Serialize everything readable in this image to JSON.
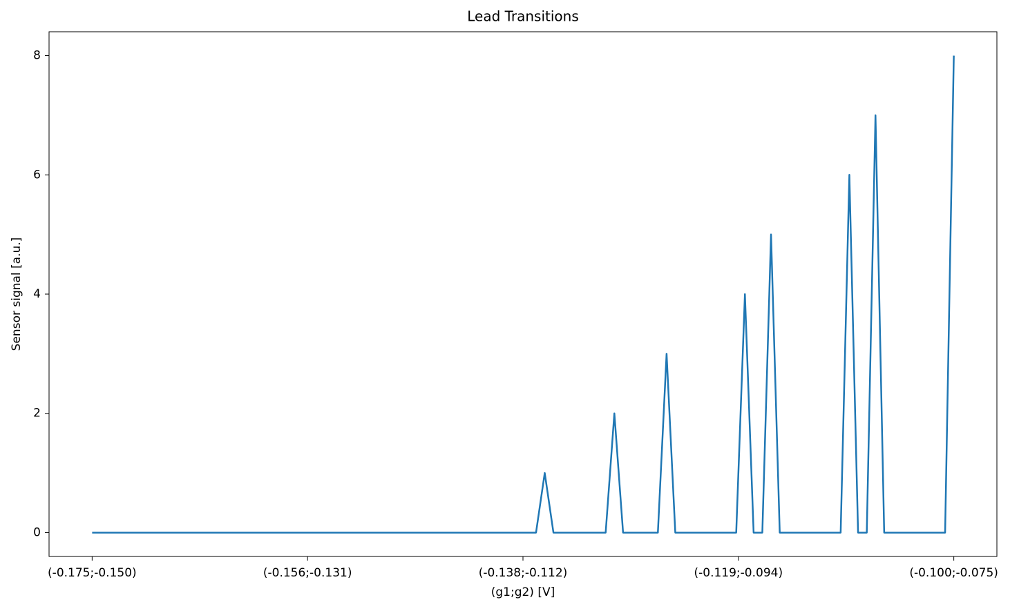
{
  "chart_data": {
    "type": "line",
    "title": "Lead Transitions",
    "xlabel": "(g1;g2) [V]",
    "ylabel": "Sensor signal [a.u.]",
    "values": [
      0,
      0,
      0,
      0,
      0,
      0,
      0,
      0,
      0,
      0,
      0,
      0,
      0,
      0,
      0,
      0,
      0,
      0,
      0,
      0,
      0,
      0,
      0,
      0,
      0,
      0,
      0,
      0,
      0,
      0,
      0,
      0,
      0,
      0,
      0,
      0,
      0,
      0,
      0,
      0,
      0,
      0,
      0,
      0,
      0,
      0,
      0,
      0,
      0,
      0,
      0,
      0,
      1,
      0,
      0,
      0,
      0,
      0,
      0,
      0,
      2,
      0,
      0,
      0,
      0,
      0,
      3,
      0,
      0,
      0,
      0,
      0,
      0,
      0,
      0,
      4,
      0,
      0,
      5,
      0,
      0,
      0,
      0,
      0,
      0,
      0,
      0,
      6,
      0,
      0,
      7,
      0,
      0,
      0,
      0,
      0,
      0,
      0,
      0,
      8
    ],
    "color": "#1f77b4",
    "xlim": [
      -4.95,
      103.95
    ],
    "xticks": [
      {
        "value": 0,
        "label": "(-0.175;-0.150)"
      },
      {
        "value": 24.75,
        "label": "(-0.156;-0.131)"
      },
      {
        "value": 49.5,
        "label": "(-0.138;-0.112)"
      },
      {
        "value": 74.25,
        "label": "(-0.119;-0.094)"
      },
      {
        "value": 99,
        "label": "(-0.100;-0.075)"
      }
    ],
    "ylim": [
      -0.4,
      8.4
    ],
    "yticks": [
      0,
      2,
      4,
      6,
      8
    ],
    "grid": false
  }
}
